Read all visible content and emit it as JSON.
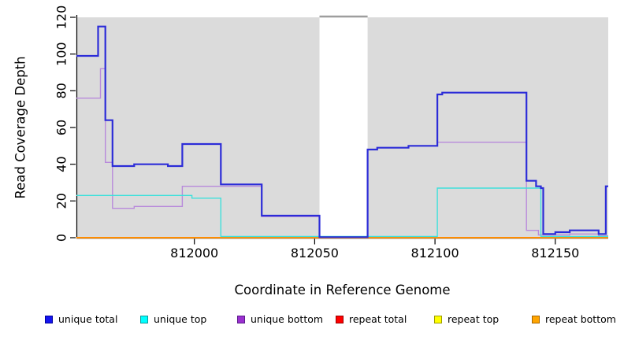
{
  "chart_data": {
    "type": "line",
    "subtype": "step-coverage-plot",
    "xlabel": "Coordinate in Reference Genome",
    "ylabel": "Read Coverage Depth",
    "xlim": [
      811951,
      812172
    ],
    "ylim": [
      0,
      120
    ],
    "xticks": [
      812000,
      812050,
      812100,
      812150
    ],
    "yticks": [
      0,
      20,
      40,
      60,
      80,
      100,
      120
    ],
    "grid": false,
    "panel_background": "#ffffff",
    "background_regions": [
      {
        "name": "unique-region-left",
        "x0": 811951,
        "x1": 812052,
        "color": "#DBDBDB"
      },
      {
        "name": "unique-region-right",
        "x0": 812072,
        "x1": 812172,
        "color": "#DBDBDB"
      }
    ],
    "gap_top_bar": {
      "x0": 812052,
      "x1": 812072,
      "y": 120,
      "color": "#9E9E9E"
    },
    "series": [
      {
        "name": "repeat total",
        "color": "#DC1414",
        "width": 1.4,
        "points": [
          [
            811951,
            0
          ]
        ]
      },
      {
        "name": "repeat top",
        "color": "#E8E800",
        "width": 1.4,
        "points": [
          [
            811951,
            0
          ]
        ]
      },
      {
        "name": "repeat bottom",
        "color": "#FF8C00",
        "width": 2,
        "points": [
          [
            811951,
            0
          ]
        ]
      },
      {
        "name": "unique bottom",
        "color": "#B88ADB",
        "width": 1.4,
        "points": [
          [
            811951,
            76
          ],
          [
            811961,
            92
          ],
          [
            811963,
            41
          ],
          [
            811966,
            16
          ],
          [
            811975,
            17
          ],
          [
            811995,
            28
          ],
          [
            812028,
            11.5
          ],
          [
            812052,
            0.3
          ],
          [
            812072,
            48
          ],
          [
            812076,
            49
          ],
          [
            812089,
            50
          ],
          [
            812101,
            52
          ],
          [
            812138,
            4
          ],
          [
            812143,
            1.5
          ],
          [
            812156,
            2
          ],
          [
            812168,
            1
          ]
        ]
      },
      {
        "name": "unique top",
        "color": "#3FE0DB",
        "width": 1.4,
        "points": [
          [
            811951,
            23
          ],
          [
            811999,
            21.5
          ],
          [
            812011,
            0.7
          ],
          [
            812101,
            27
          ],
          [
            812144,
            0.7
          ]
        ]
      },
      {
        "name": "unique total",
        "color": "#2C2CD8",
        "width": 2.2,
        "points": [
          [
            811951,
            99
          ],
          [
            811960,
            115
          ],
          [
            811963,
            64
          ],
          [
            811966,
            39
          ],
          [
            811975,
            40
          ],
          [
            811989,
            39
          ],
          [
            811995,
            51
          ],
          [
            812011,
            29
          ],
          [
            812028,
            12
          ],
          [
            812052,
            0.3
          ],
          [
            812072,
            48
          ],
          [
            812076,
            49
          ],
          [
            812089,
            50
          ],
          [
            812101,
            78
          ],
          [
            812103,
            79
          ],
          [
            812138,
            31
          ],
          [
            812142,
            28
          ],
          [
            812144,
            27
          ],
          [
            812145,
            2
          ],
          [
            812150,
            3
          ],
          [
            812156,
            4
          ],
          [
            812168,
            2
          ],
          [
            812171,
            28
          ]
        ]
      }
    ],
    "legend": [
      {
        "label": "unique total",
        "fill": "#1414F0",
        "border": "#00009A"
      },
      {
        "label": "unique top",
        "fill": "#00FFFF",
        "border": "#0F9898"
      },
      {
        "label": "unique bottom",
        "fill": "#9B30D0",
        "border": "#5B1A8A"
      },
      {
        "label": "repeat total",
        "fill": "#FF0000",
        "border": "#990000"
      },
      {
        "label": "repeat top",
        "fill": "#FFFF00",
        "border": "#9C9C00"
      },
      {
        "label": "repeat bottom",
        "fill": "#FFA500",
        "border": "#A66400"
      }
    ],
    "legend_position": "bottom"
  }
}
